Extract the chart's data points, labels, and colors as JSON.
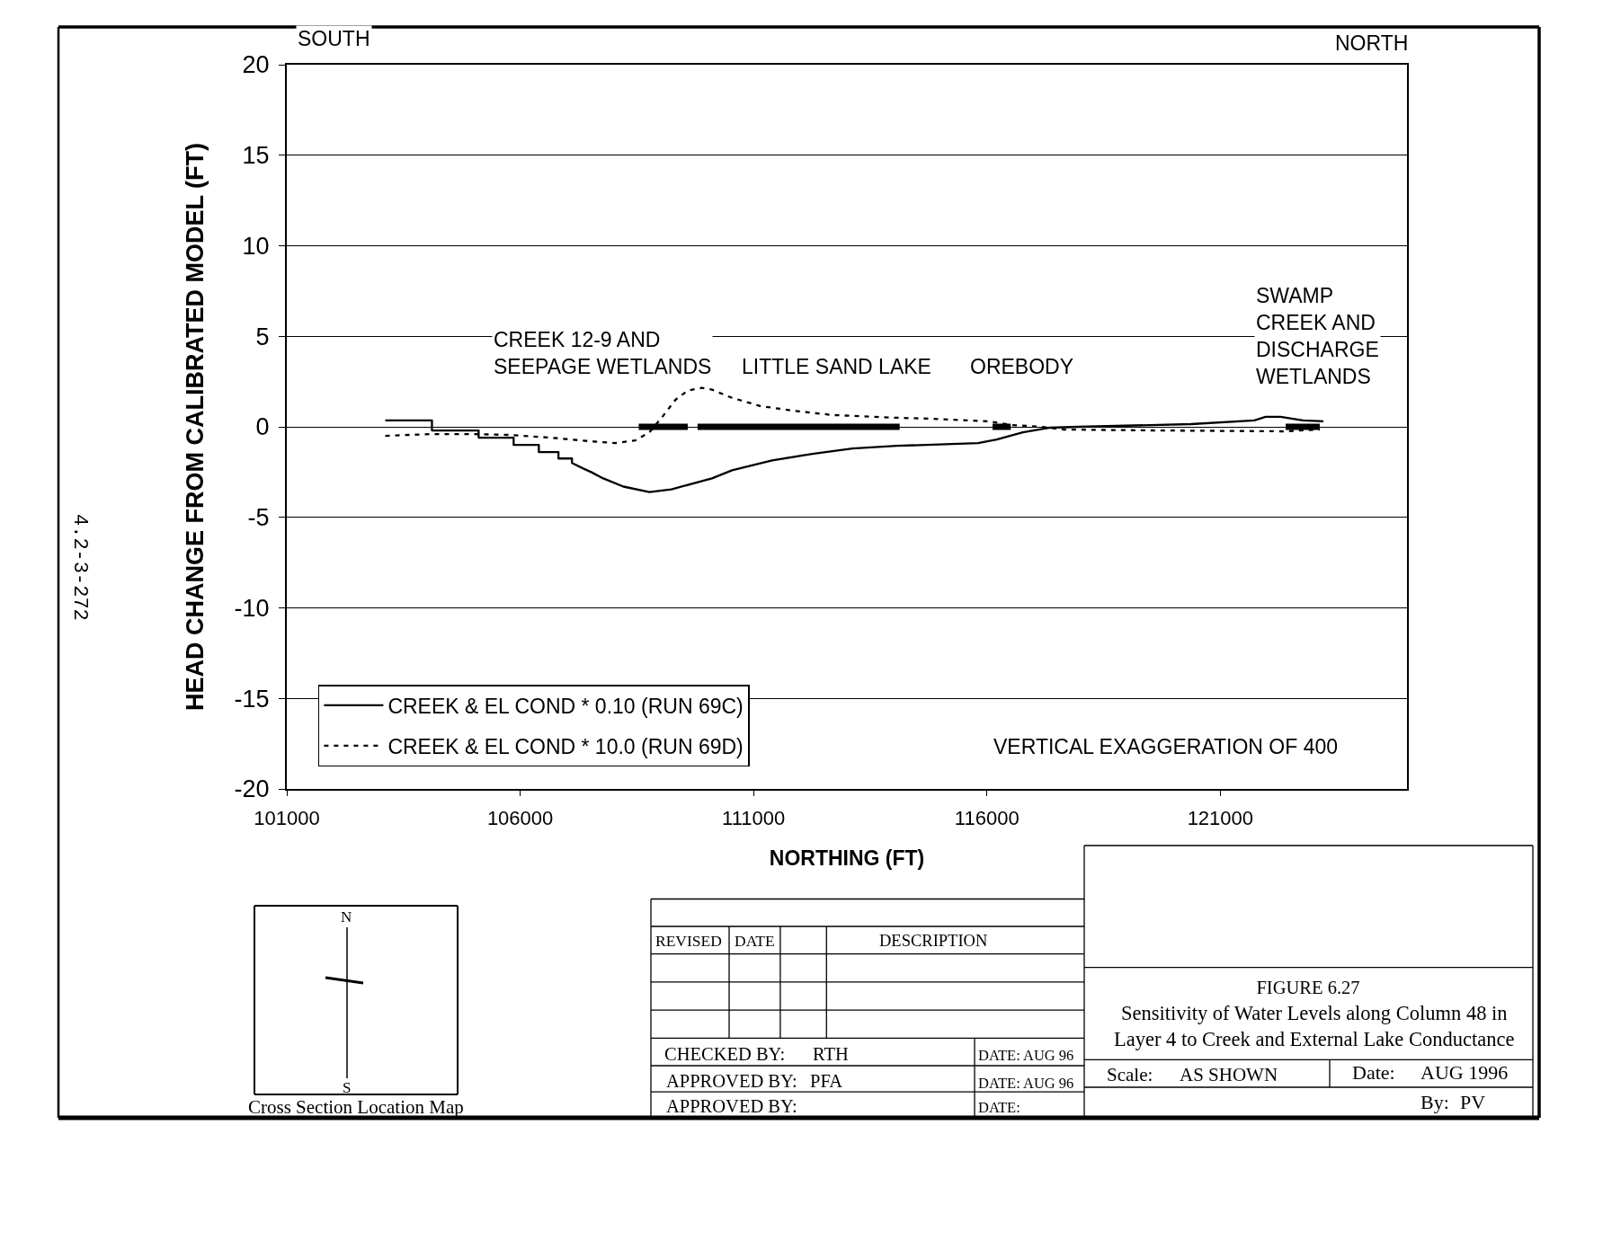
{
  "chart_data": {
    "type": "line",
    "title": "FIGURE 6.27",
    "subtitle": "Sensitivity of Water Levels along Column 48 in\nLayer 4 to Creek and External Lake Conductance",
    "xlabel": "NORTHING (FT)",
    "ylabel": "HEAD CHANGE FROM CALIBRATED MODEL (FT)",
    "xlim": [
      101000,
      125000
    ],
    "xticks": [
      101000,
      106000,
      111000,
      116000,
      121000
    ],
    "ylim": [
      -20,
      20
    ],
    "yticks": [
      -20,
      -15,
      -10,
      -5,
      0,
      5,
      10,
      15,
      20
    ],
    "grid": "y",
    "legend": "bottom left",
    "series": [
      {
        "name": "CREEK & EL COND * 0.10 (RUN 69C)",
        "color": "#000000",
        "line_style": "solid",
        "x": [
          103110,
          104110,
          104110,
          105110,
          105110,
          105860,
          105860,
          106400,
          106400,
          106820,
          106820,
          107110,
          107110,
          107350,
          107520,
          107780,
          108210,
          108770,
          109240,
          110110,
          110540,
          111400,
          112260,
          113120,
          114070,
          115810,
          116210,
          116770,
          117330,
          117970,
          120370,
          121730,
          121970,
          122290,
          122770,
          123210
        ],
        "values": [
          0.35,
          0.35,
          -0.2,
          -0.2,
          -0.6,
          -0.6,
          -1.0,
          -1.0,
          -1.4,
          -1.4,
          -1.75,
          -1.75,
          -2.0,
          -2.3,
          -2.5,
          -2.85,
          -3.3,
          -3.6,
          -3.45,
          -2.85,
          -2.4,
          -1.85,
          -1.5,
          -1.2,
          -1.05,
          -0.9,
          -0.7,
          -0.3,
          -0.05,
          0.0,
          0.15,
          0.35,
          0.55,
          0.55,
          0.35,
          0.3
        ]
      },
      {
        "name": "CREEK & EL COND * 10.0 (RUN 69D)",
        "color": "#000000",
        "line_style": "dotted",
        "x": [
          103110,
          104080,
          104940,
          105800,
          106660,
          107520,
          108040,
          108470,
          108770,
          109030,
          109330,
          109590,
          109890,
          110110,
          110540,
          111140,
          111830,
          112690,
          114070,
          114770,
          116050,
          116530,
          117170,
          117650,
          119570,
          122370,
          123130
        ],
        "values": [
          -0.5,
          -0.4,
          -0.4,
          -0.45,
          -0.6,
          -0.8,
          -0.9,
          -0.75,
          -0.3,
          0.5,
          1.5,
          2.0,
          2.15,
          2.05,
          1.6,
          1.15,
          0.9,
          0.65,
          0.5,
          0.45,
          0.3,
          0.1,
          0.0,
          -0.15,
          -0.2,
          -0.25,
          -0.15
        ]
      },
      {
        "color": "#000000",
        "line_style": "solid",
        "x": [
          108540,
          109590,
          null,
          109800,
          114130,
          null,
          116120,
          116510,
          null,
          122400,
          123130
        ],
        "values": [
          0,
          0,
          null,
          0,
          0,
          null,
          0,
          0,
          null,
          0,
          0
        ]
      }
    ],
    "annotations": [
      "SOUTH",
      "NORTH",
      "CREEK 12-9 AND\nSEEPAGE WETLANDS",
      "LITTLE SAND LAKE",
      "OREBODY",
      "SWAMP\nCREEK AND\nDISCHARGE\nWETLANDS",
      "VERTICAL EXAGGERATION OF 400",
      "4.2-3-272",
      "REVISED",
      "DATE",
      "DESCRIPTION",
      "CHECKED BY:",
      "RTH",
      "DATE: AUG 96",
      "APPROVED BY:",
      "PFA",
      "DATE: AUG 96",
      "APPROVED BY:",
      "DATE:",
      "Scale:",
      "AS SHOWN",
      "Date:",
      "AUG 1996",
      "By:",
      "PV",
      "Cross Section Location Map",
      "N",
      "S"
    ]
  }
}
